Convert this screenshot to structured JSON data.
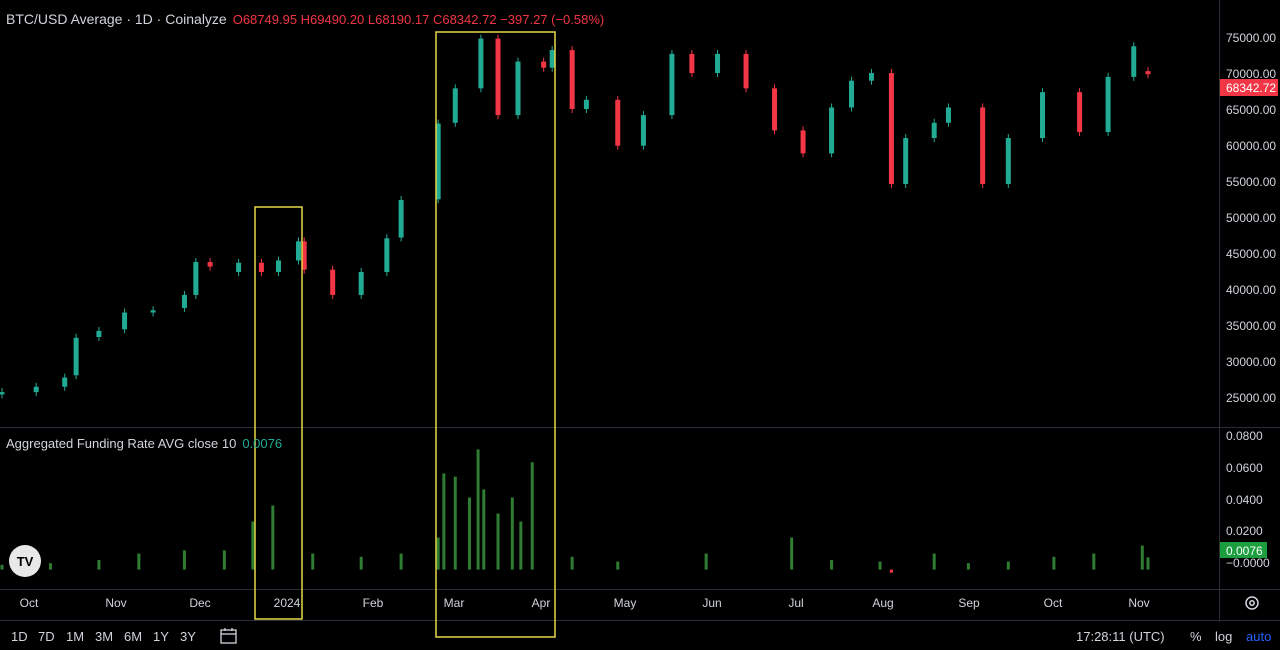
{
  "header": {
    "title": "BTC/USD Average · 1D · Coinalyze",
    "ohlc": "O68749.95 H69490.20 L68190.17 C68342.72 −397.27 (−0.58%)"
  },
  "indicator": {
    "label": "Aggregated Funding Rate AVG close 10",
    "value": "0.0076"
  },
  "price_axis": {
    "ticks": [
      "75000.00",
      "70000.00",
      "65000.00",
      "60000.00",
      "55000.00",
      "50000.00",
      "45000.00",
      "40000.00",
      "35000.00",
      "30000.00",
      "25000.00"
    ],
    "current": "68342.72"
  },
  "funding_axis": {
    "ticks": [
      "0.0800",
      "0.0600",
      "0.0400",
      "0.0200",
      "−0.0000"
    ],
    "current": "0.0076"
  },
  "time_axis": {
    "labels": [
      "Oct",
      "Nov",
      "Dec",
      "2024",
      "Feb",
      "Mar",
      "Apr",
      "May",
      "Jun",
      "Jul",
      "Aug",
      "Sep",
      "Oct",
      "Nov"
    ]
  },
  "bottom_bar": {
    "ranges": [
      "1D",
      "7D",
      "1M",
      "3M",
      "6M",
      "1Y",
      "3Y"
    ],
    "clock": "17:28:11 (UTC)",
    "percent": "%",
    "log": "log",
    "auto": "auto"
  },
  "logo": {
    "text": "TV",
    "icon": "tradingview-logo-icon"
  },
  "icons": {
    "settings": "gear-icon",
    "date_range": "calendar-icon"
  },
  "colors": {
    "up": "#22ab94",
    "down": "#f23645",
    "funding": "#2e7d32",
    "highlight": "#e6d84a",
    "current_funding": "#1b9e3e"
  },
  "chart_data": [
    {
      "type": "candlestick",
      "title": "BTC/USD Average · 1D · Coinalyze",
      "ylim": [
        22500,
        77000
      ],
      "x": [
        "2023-09-28",
        "2023-10-10",
        "2023-10-20",
        "2023-10-24",
        "2023-11-01",
        "2023-11-10",
        "2023-11-20",
        "2023-12-01",
        "2023-12-05",
        "2023-12-10",
        "2023-12-20",
        "2023-12-28",
        "2024-01-03",
        "2024-01-10",
        "2024-01-12",
        "2024-01-22",
        "2024-02-01",
        "2024-02-10",
        "2024-02-15",
        "2024-02-28",
        "2024-03-05",
        "2024-03-14",
        "2024-03-20",
        "2024-03-27",
        "2024-04-05",
        "2024-04-08",
        "2024-04-15",
        "2024-04-20",
        "2024-05-01",
        "2024-05-10",
        "2024-05-20",
        "2024-05-27",
        "2024-06-05",
        "2024-06-15",
        "2024-06-25",
        "2024-07-05",
        "2024-07-15",
        "2024-07-22",
        "2024-07-29",
        "2024-08-05",
        "2024-08-10",
        "2024-08-20",
        "2024-08-25",
        "2024-09-06",
        "2024-09-15",
        "2024-09-27",
        "2024-10-10",
        "2024-10-20",
        "2024-10-29",
        "2024-11-03"
      ],
      "close": [
        26800,
        27500,
        28700,
        33900,
        34800,
        37200,
        37500,
        39500,
        43800,
        43200,
        43700,
        42500,
        44000,
        46500,
        42800,
        39500,
        42500,
        46900,
        51900,
        61900,
        66500,
        73000,
        63000,
        70000,
        69200,
        71500,
        63800,
        65000,
        59000,
        63000,
        71000,
        68500,
        71000,
        66500,
        61000,
        58000,
        64000,
        67500,
        68500,
        54000,
        60000,
        62000,
        64000,
        54000,
        60000,
        66000,
        60800,
        68000,
        72000,
        68342.72
      ],
      "open": [
        26500,
        26800,
        27500,
        29000,
        34000,
        35000,
        37200,
        37800,
        39500,
        43800,
        42500,
        43700,
        42500,
        44000,
        46500,
        42800,
        39500,
        42500,
        47000,
        52000,
        62000,
        66500,
        73000,
        63000,
        70000,
        69200,
        71500,
        63800,
        65000,
        59000,
        63000,
        71000,
        68500,
        71000,
        66500,
        61000,
        58000,
        64000,
        67500,
        68500,
        54000,
        60000,
        62000,
        64000,
        54000,
        60000,
        66000,
        60800,
        68000,
        68749.95
      ]
    },
    {
      "type": "bar",
      "title": "Aggregated Funding Rate AVG close 10",
      "ylim": [
        -0.0065,
        0.0865
      ],
      "x": [
        "2023-09-28",
        "2023-10-15",
        "2023-11-01",
        "2023-11-15",
        "2023-12-01",
        "2023-12-15",
        "2023-12-25",
        "2024-01-01",
        "2024-01-15",
        "2024-02-01",
        "2024-02-15",
        "2024-02-28",
        "2024-03-01",
        "2024-03-05",
        "2024-03-10",
        "2024-03-13",
        "2024-03-15",
        "2024-03-20",
        "2024-03-25",
        "2024-03-28",
        "2024-04-01",
        "2024-04-15",
        "2024-05-01",
        "2024-06-01",
        "2024-07-01",
        "2024-07-15",
        "2024-08-01",
        "2024-08-05",
        "2024-08-20",
        "2024-09-01",
        "2024-09-15",
        "2024-10-01",
        "2024-10-15",
        "2024-11-01",
        "2024-11-03"
      ],
      "values": [
        0.003,
        0.004,
        0.006,
        0.01,
        0.012,
        0.012,
        0.03,
        0.04,
        0.01,
        0.008,
        0.01,
        0.02,
        0.06,
        0.058,
        0.045,
        0.075,
        0.05,
        0.035,
        0.045,
        0.03,
        0.067,
        0.008,
        0.005,
        0.01,
        0.02,
        0.006,
        0.005,
        -0.002,
        0.01,
        0.004,
        0.005,
        0.008,
        0.01,
        0.015,
        0.0076
      ]
    }
  ]
}
